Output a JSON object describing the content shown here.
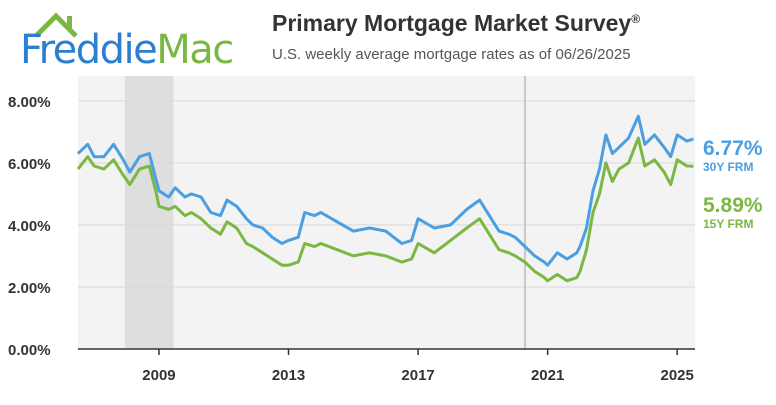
{
  "logo": {
    "text_a": "Freddie",
    "text_b": "Mac",
    "roof_color": "#7ab843"
  },
  "header": {
    "title": "Primary Mortgage Market Survey",
    "title_mark": "®",
    "subtitle": "U.S. weekly average mortgage rates as of 06/26/2025"
  },
  "end_labels": {
    "frm30_value": "6.77%",
    "frm30_name": "30Y FRM",
    "frm15_value": "5.89%",
    "frm15_name": "15Y FRM"
  },
  "chart_data": {
    "type": "line",
    "x_range": [
      2006.5,
      2025.55
    ],
    "ylim": [
      0,
      8.8
    ],
    "y_ticks": [
      0,
      2,
      4,
      6,
      8
    ],
    "y_tick_labels": [
      "0.00%",
      "2.00%",
      "4.00%",
      "6.00%",
      "8.00%"
    ],
    "x_ticks": [
      2009,
      2013,
      2017,
      2021,
      2025
    ],
    "x_tick_labels": [
      "2009",
      "2013",
      "2017",
      "2021",
      "2025"
    ],
    "grid": "horizontal",
    "recession_shading": [
      [
        2007.95,
        2009.45
      ]
    ],
    "vertical_marker": 2020.3,
    "series": [
      {
        "name": "30Y FRM",
        "color": "#4a9fe2",
        "x": [
          2006.5,
          2006.8,
          2007.0,
          2007.3,
          2007.6,
          2007.9,
          2008.1,
          2008.4,
          2008.7,
          2008.9,
          2009.0,
          2009.3,
          2009.5,
          2009.8,
          2010.0,
          2010.3,
          2010.6,
          2010.9,
          2011.1,
          2011.4,
          2011.7,
          2011.9,
          2012.2,
          2012.5,
          2012.8,
          2013.0,
          2013.3,
          2013.5,
          2013.8,
          2014.0,
          2014.5,
          2015.0,
          2015.5,
          2016.0,
          2016.5,
          2016.8,
          2017.0,
          2017.5,
          2018.0,
          2018.5,
          2018.9,
          2019.2,
          2019.5,
          2019.8,
          2020.0,
          2020.3,
          2020.6,
          2020.9,
          2021.0,
          2021.3,
          2021.6,
          2021.9,
          2022.0,
          2022.2,
          2022.4,
          2022.6,
          2022.8,
          2023.0,
          2023.2,
          2023.5,
          2023.8,
          2024.0,
          2024.3,
          2024.6,
          2024.8,
          2025.0,
          2025.3,
          2025.5
        ],
        "values": [
          6.3,
          6.6,
          6.2,
          6.2,
          6.6,
          6.1,
          5.7,
          6.2,
          6.3,
          5.5,
          5.1,
          4.9,
          5.2,
          4.9,
          5.0,
          4.9,
          4.4,
          4.3,
          4.8,
          4.6,
          4.2,
          4.0,
          3.9,
          3.6,
          3.4,
          3.5,
          3.6,
          4.4,
          4.3,
          4.4,
          4.1,
          3.8,
          3.9,
          3.8,
          3.4,
          3.5,
          4.2,
          3.9,
          4.0,
          4.5,
          4.8,
          4.3,
          3.8,
          3.7,
          3.6,
          3.3,
          3.0,
          2.8,
          2.7,
          3.1,
          2.9,
          3.1,
          3.3,
          3.9,
          5.1,
          5.8,
          6.9,
          6.3,
          6.5,
          6.8,
          7.5,
          6.6,
          6.9,
          6.5,
          6.2,
          6.9,
          6.7,
          6.77
        ]
      },
      {
        "name": "15Y FRM",
        "color": "#7ab843",
        "x": [
          2006.5,
          2006.8,
          2007.0,
          2007.3,
          2007.6,
          2007.9,
          2008.1,
          2008.4,
          2008.7,
          2008.9,
          2009.0,
          2009.3,
          2009.5,
          2009.8,
          2010.0,
          2010.3,
          2010.6,
          2010.9,
          2011.1,
          2011.4,
          2011.7,
          2011.9,
          2012.2,
          2012.5,
          2012.8,
          2013.0,
          2013.3,
          2013.5,
          2013.8,
          2014.0,
          2014.5,
          2015.0,
          2015.5,
          2016.0,
          2016.5,
          2016.8,
          2017.0,
          2017.5,
          2018.0,
          2018.5,
          2018.9,
          2019.2,
          2019.5,
          2019.8,
          2020.0,
          2020.3,
          2020.6,
          2020.9,
          2021.0,
          2021.3,
          2021.6,
          2021.9,
          2022.0,
          2022.2,
          2022.4,
          2022.6,
          2022.8,
          2023.0,
          2023.2,
          2023.5,
          2023.8,
          2024.0,
          2024.3,
          2024.6,
          2024.8,
          2025.0,
          2025.3,
          2025.5
        ],
        "values": [
          5.8,
          6.2,
          5.9,
          5.8,
          6.1,
          5.6,
          5.3,
          5.8,
          5.9,
          5.1,
          4.6,
          4.5,
          4.6,
          4.3,
          4.4,
          4.2,
          3.9,
          3.7,
          4.1,
          3.9,
          3.4,
          3.3,
          3.1,
          2.9,
          2.7,
          2.7,
          2.8,
          3.4,
          3.3,
          3.4,
          3.2,
          3.0,
          3.1,
          3.0,
          2.8,
          2.9,
          3.4,
          3.1,
          3.5,
          3.9,
          4.2,
          3.7,
          3.2,
          3.1,
          3.0,
          2.8,
          2.5,
          2.3,
          2.2,
          2.4,
          2.2,
          2.3,
          2.5,
          3.2,
          4.4,
          5.0,
          6.0,
          5.4,
          5.8,
          6.0,
          6.8,
          5.9,
          6.1,
          5.7,
          5.3,
          6.1,
          5.9,
          5.89
        ]
      }
    ]
  }
}
